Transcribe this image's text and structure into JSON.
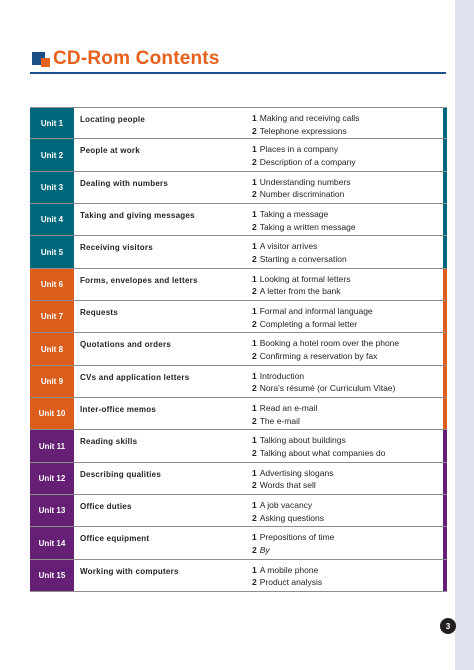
{
  "title": "CD-Rom Contents",
  "page_number": "3",
  "colors": {
    "blue": "#00687d",
    "orange": "#db5e1d",
    "purple": "#651f74",
    "title": "#e8611c"
  },
  "units": [
    {
      "label": "Unit 1",
      "title": "Locating people",
      "lessons": [
        {
          "num": "1",
          "text": "Making and receiving calls"
        },
        {
          "num": "2",
          "text": "Telephone expressions"
        }
      ]
    },
    {
      "label": "Unit 2",
      "title": "People at work",
      "lessons": [
        {
          "num": "1",
          "text": "Places in a company"
        },
        {
          "num": "2",
          "text": "Description of a company"
        }
      ]
    },
    {
      "label": "Unit 3",
      "title": "Dealing with numbers",
      "lessons": [
        {
          "num": "1",
          "text": "Understanding numbers"
        },
        {
          "num": "2",
          "text": "Number discrimination"
        }
      ]
    },
    {
      "label": "Unit 4",
      "title": "Taking and giving messages",
      "lessons": [
        {
          "num": "1",
          "text": "Taking a message"
        },
        {
          "num": "2",
          "text": "Taking a written message"
        }
      ]
    },
    {
      "label": "Unit 5",
      "title": "Receiving visitors",
      "lessons": [
        {
          "num": "1",
          "text": "A visitor arrives"
        },
        {
          "num": "2",
          "text": "Starting a conversation"
        }
      ]
    },
    {
      "label": "Unit 6",
      "title": "Forms, envelopes and letters",
      "lessons": [
        {
          "num": "1",
          "text": "Looking at formal letters"
        },
        {
          "num": "2",
          "text": "A letter from the bank"
        }
      ]
    },
    {
      "label": "Unit 7",
      "title": "Requests",
      "lessons": [
        {
          "num": "1",
          "text": "Formal and informal language"
        },
        {
          "num": "2",
          "text": "Completing a formal letter"
        }
      ]
    },
    {
      "label": "Unit 8",
      "title": "Quotations and orders",
      "lessons": [
        {
          "num": "1",
          "text": "Booking a hotel room over the phone"
        },
        {
          "num": "2",
          "text": "Confirming a reservation by fax"
        }
      ]
    },
    {
      "label": "Unit 9",
      "title": "CVs and application letters",
      "lessons": [
        {
          "num": "1",
          "text": "Introduction"
        },
        {
          "num": "2",
          "text": "Nora's résumé (or Curriculum Vitae)"
        }
      ]
    },
    {
      "label": "Unit 10",
      "title": "Inter-office memos",
      "lessons": [
        {
          "num": "1",
          "text": "Read an e-mail"
        },
        {
          "num": "2",
          "text": "The e-mail"
        }
      ]
    },
    {
      "label": "Unit 11",
      "title": "Reading skills",
      "lessons": [
        {
          "num": "1",
          "text": "Talking about buildings"
        },
        {
          "num": "2",
          "text": "Talking about what companies do"
        }
      ]
    },
    {
      "label": "Unit 12",
      "title": "Describing qualities",
      "lessons": [
        {
          "num": "1",
          "text": "Advertising slogans"
        },
        {
          "num": "2",
          "text": "Words that sell"
        }
      ]
    },
    {
      "label": "Unit 13",
      "title": "Office duties",
      "lessons": [
        {
          "num": "1",
          "text": "A job vacancy"
        },
        {
          "num": "2",
          "text": "Asking questions"
        }
      ]
    },
    {
      "label": "Unit 14",
      "title": "Office equipment",
      "lessons": [
        {
          "num": "1",
          "text": "Prepositions of time"
        },
        {
          "num": "2",
          "text": "By"
        }
      ]
    },
    {
      "label": "Unit 15",
      "title": "Working with computers",
      "lessons": [
        {
          "num": "1",
          "text": "A mobile phone"
        },
        {
          "num": "2",
          "text": "Product analysis"
        }
      ]
    }
  ]
}
